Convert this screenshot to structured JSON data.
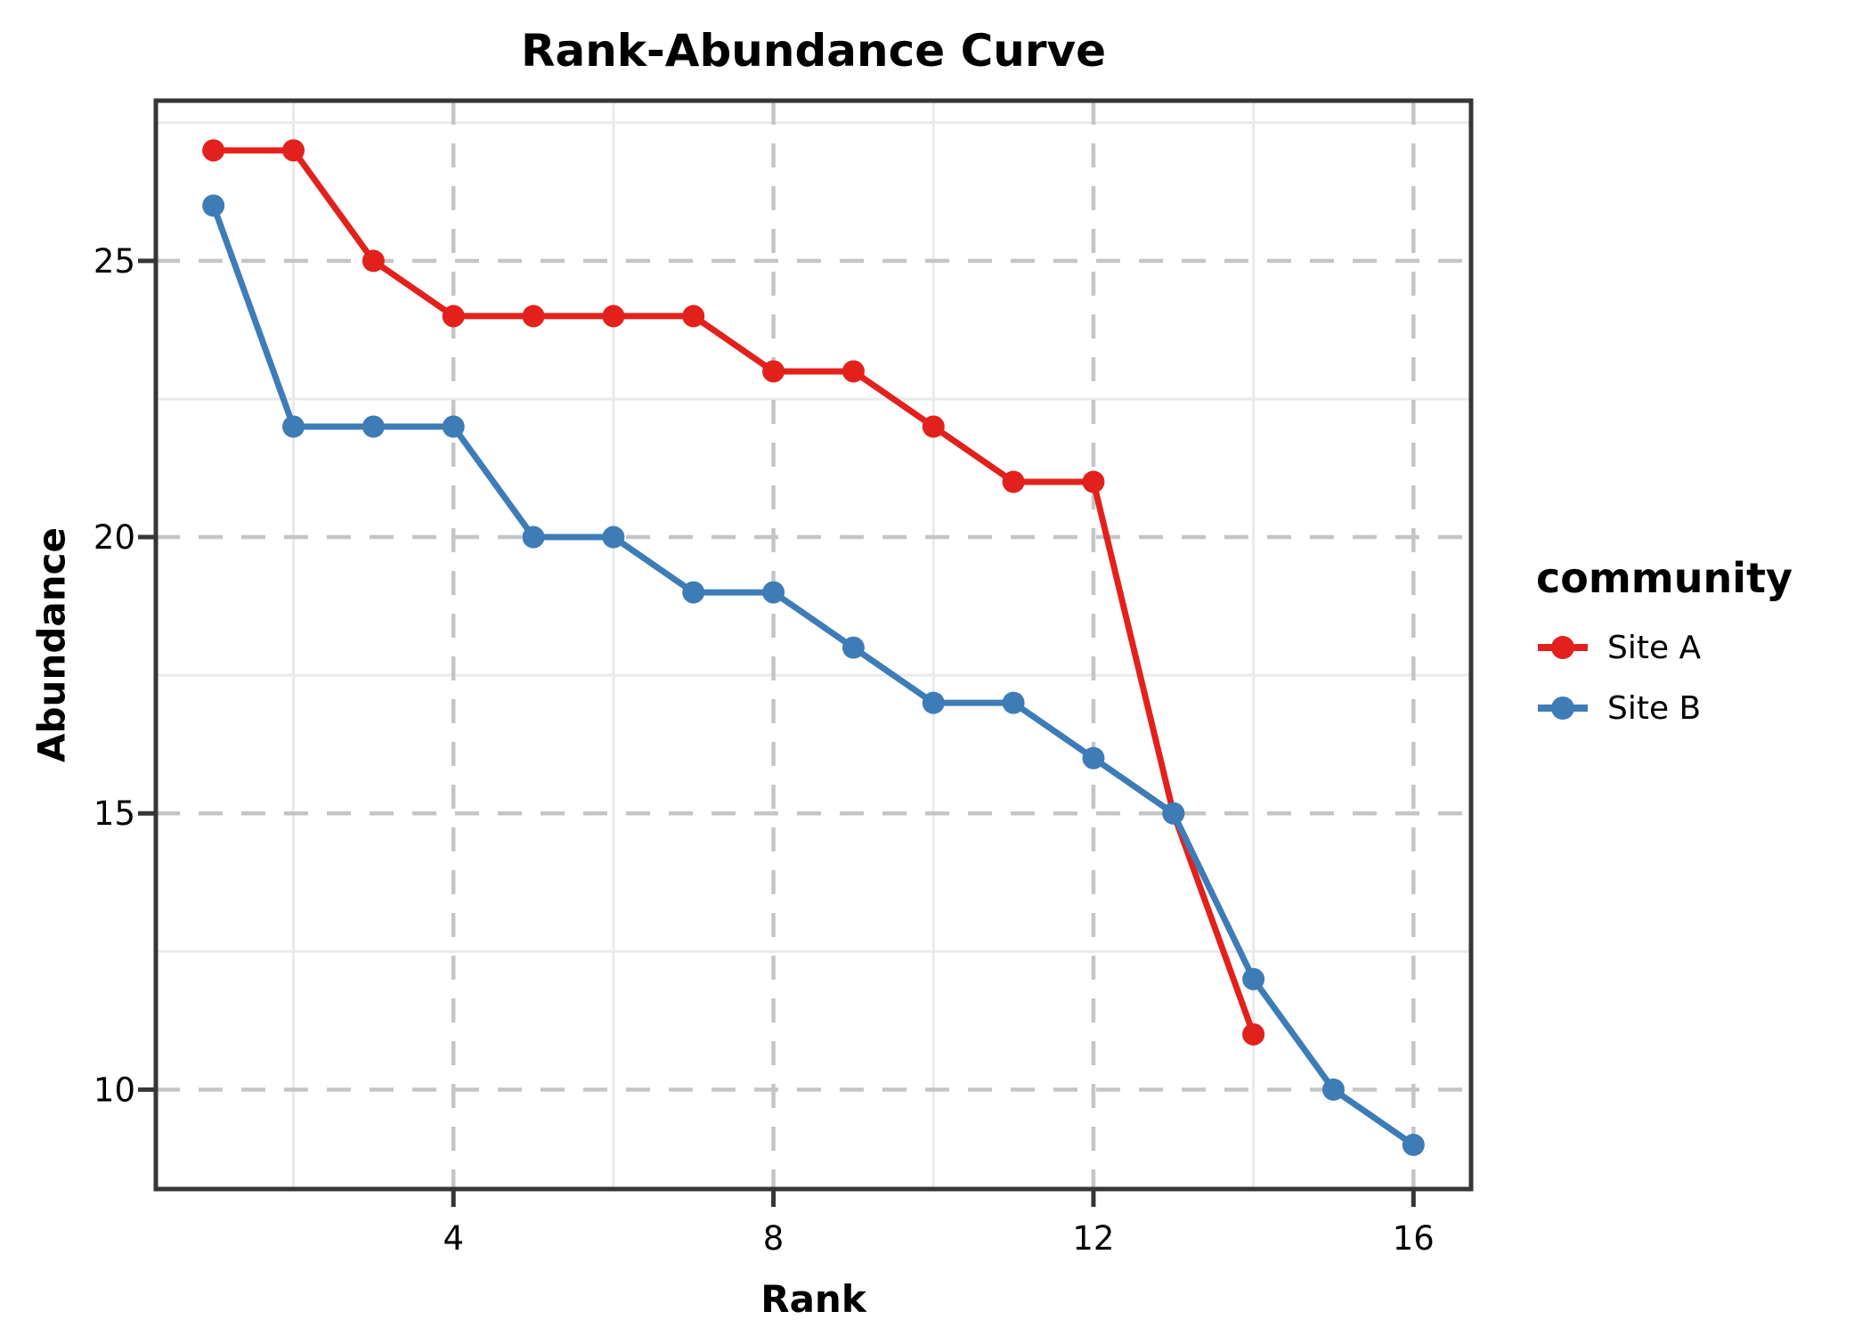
{
  "chart_data": {
    "type": "line",
    "title": "Rank-Abundance Curve",
    "xlabel": "Rank",
    "ylabel": "Abundance",
    "legend_title": "community",
    "legend_position": "right",
    "grid": {
      "major_style": "dashed",
      "major_color": "#c5c5c5",
      "minor_style": "solid",
      "minor_color": "#eaeaea"
    },
    "panel_border_color": "#363636",
    "background_color": "#ffffff",
    "x_ticks": [
      4,
      8,
      12,
      16
    ],
    "y_ticks": [
      10,
      15,
      20,
      25
    ],
    "x_minor_ticks": [
      2,
      6,
      10,
      14
    ],
    "y_minor_ticks": [
      12.5,
      17.5,
      22.5,
      27.5
    ],
    "xlim": [
      0.28,
      16.72
    ],
    "ylim": [
      8.2,
      27.9
    ],
    "series": [
      {
        "name": "Site A",
        "color": "#e3211c",
        "x": [
          1,
          2,
          3,
          4,
          5,
          6,
          7,
          8,
          9,
          10,
          11,
          12,
          13,
          14
        ],
        "values": [
          27,
          27,
          25,
          24,
          24,
          24,
          24,
          23,
          23,
          22,
          21,
          21,
          15,
          11
        ]
      },
      {
        "name": "Site B",
        "color": "#3e7cb8",
        "x": [
          1,
          2,
          3,
          4,
          5,
          6,
          7,
          8,
          9,
          10,
          11,
          12,
          13,
          14,
          15,
          16
        ],
        "values": [
          26,
          22,
          22,
          22,
          20,
          20,
          19,
          19,
          18,
          17,
          17,
          16,
          15,
          12,
          10,
          9
        ]
      }
    ]
  }
}
